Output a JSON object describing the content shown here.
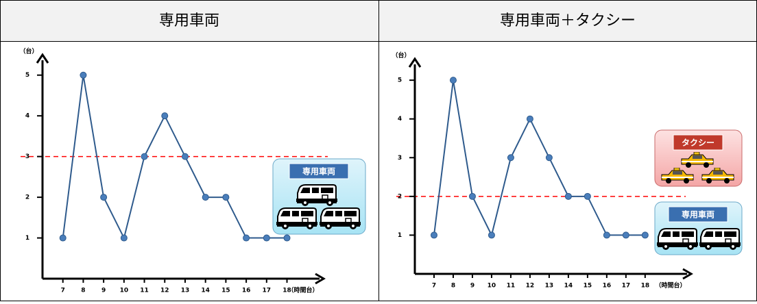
{
  "chart_data": [
    {
      "type": "line",
      "title": "専用車両",
      "x": [
        7,
        8,
        9,
        10,
        11,
        12,
        13,
        14,
        15,
        16,
        17,
        18
      ],
      "values": [
        1,
        5,
        2,
        1,
        3,
        4,
        3,
        2,
        2,
        1,
        1,
        1
      ],
      "color": "#2e5a8c",
      "marker_color": "#4a7ebb",
      "xlim": [
        6,
        19.8
      ],
      "ylim": [
        0,
        5.5
      ],
      "yticks": [
        1,
        2,
        3,
        4,
        5
      ],
      "ylabel": "（台）",
      "xlabel": "（時間台）",
      "reference_line": 3,
      "reference_color": "#ff0000",
      "annotations": [
        {
          "label": "専用車両"
        }
      ]
    },
    {
      "type": "line",
      "title": "専用車両＋タクシー",
      "x": [
        7,
        8,
        9,
        10,
        11,
        12,
        13,
        14,
        15,
        16,
        17,
        18
      ],
      "values": [
        1,
        5,
        2,
        1,
        3,
        4,
        3,
        2,
        2,
        1,
        1,
        1
      ],
      "color": "#2e5a8c",
      "marker_color": "#4a7ebb",
      "xlim": [
        6,
        20.4
      ],
      "ylim": [
        0,
        5.55
      ],
      "yticks": [
        1,
        2,
        3,
        4,
        5
      ],
      "ylabel": "（台）",
      "xlabel": "（時間台）",
      "reference_line": 2,
      "reference_color": "#ff0000",
      "annotations": [
        {
          "label": "タクシー"
        },
        {
          "label": "専用車両"
        }
      ]
    }
  ]
}
